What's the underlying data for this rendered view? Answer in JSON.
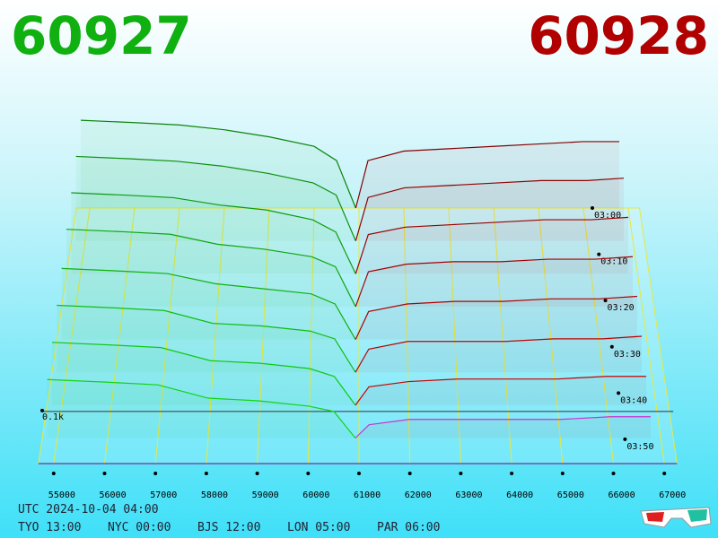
{
  "chart_data": {
    "type": "depth3d",
    "bid_label": "60927",
    "ask_label": "60928",
    "bid_color": "#10b010",
    "ask_color": "#b00000",
    "front_ask_color": "#cc33cc",
    "xticks": [
      55000,
      56000,
      57000,
      58000,
      59000,
      60000,
      61000,
      62000,
      63000,
      64000,
      65000,
      66000,
      67000
    ],
    "time_ticks": [
      "03:00",
      "03:10",
      "03:20",
      "03:30",
      "03:40",
      "03:50"
    ],
    "zticks": [
      {
        "value": 0.1,
        "label": "0.1k"
      }
    ],
    "bid_prices": [
      54800,
      56000,
      57000,
      58000,
      59000,
      60000,
      60500,
      60927
    ],
    "ask_prices": [
      60928,
      61200,
      62000,
      63000,
      64000,
      65000,
      66000,
      66800
    ],
    "snapshots": [
      {
        "bids": [
          0.37,
          0.36,
          0.35,
          0.33,
          0.3,
          0.26,
          0.2,
          0
        ],
        "asks": [
          0,
          0.2,
          0.24,
          0.25,
          0.26,
          0.27,
          0.28,
          0.28
        ]
      },
      {
        "bids": [
          0.35,
          0.34,
          0.33,
          0.31,
          0.28,
          0.24,
          0.19,
          0
        ],
        "asks": [
          0,
          0.18,
          0.22,
          0.23,
          0.24,
          0.25,
          0.25,
          0.26
        ]
      },
      {
        "bids": [
          0.33,
          0.32,
          0.31,
          0.28,
          0.26,
          0.22,
          0.17,
          0
        ],
        "asks": [
          0,
          0.16,
          0.19,
          0.2,
          0.21,
          0.22,
          0.22,
          0.23
        ]
      },
      {
        "bids": [
          0.31,
          0.3,
          0.29,
          0.25,
          0.23,
          0.2,
          0.16,
          0
        ],
        "asks": [
          0,
          0.14,
          0.17,
          0.18,
          0.18,
          0.19,
          0.19,
          0.2
        ]
      },
      {
        "bids": [
          0.28,
          0.27,
          0.26,
          0.22,
          0.2,
          0.18,
          0.14,
          0
        ],
        "asks": [
          0,
          0.11,
          0.14,
          0.15,
          0.15,
          0.16,
          0.16,
          0.17
        ]
      },
      {
        "bids": [
          0.26,
          0.25,
          0.24,
          0.19,
          0.18,
          0.16,
          0.13,
          0
        ],
        "asks": [
          0,
          0.09,
          0.12,
          0.12,
          0.12,
          0.13,
          0.13,
          0.14
        ]
      },
      {
        "bids": [
          0.24,
          0.23,
          0.22,
          0.17,
          0.16,
          0.14,
          0.11,
          0
        ],
        "asks": [
          0,
          0.07,
          0.09,
          0.1,
          0.1,
          0.1,
          0.11,
          0.11
        ]
      },
      {
        "bids": [
          0.22,
          0.21,
          0.2,
          0.15,
          0.14,
          0.12,
          0.1,
          0
        ],
        "asks": [
          0,
          0.05,
          0.07,
          0.07,
          0.07,
          0.07,
          0.08,
          0.08
        ]
      }
    ],
    "footer": {
      "utc": "UTC 2024-10-04 04:00",
      "cities": [
        "TYO 13:00",
        "NYC 00:00",
        "BJS 12:00",
        "LON 05:00",
        "PAR 06:00"
      ]
    }
  }
}
